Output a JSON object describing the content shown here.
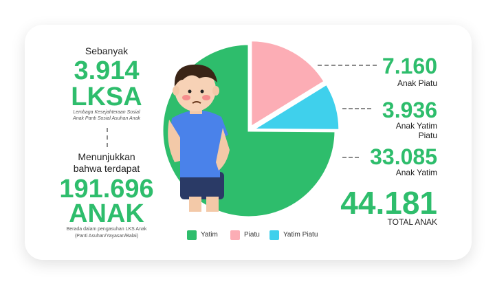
{
  "colors": {
    "green": "#2ebd6c",
    "pink": "#fcadb5",
    "blue": "#3fd0ec"
  },
  "left": {
    "intro": "Sebanyak",
    "lksa_number": "3.914",
    "lksa_label": "LKSA",
    "lksa_desc_line1": "Lembaga Kesejahteraan Sosial",
    "lksa_desc_line2": "Anak Panti Sosial Asuhan Anak",
    "show_line1": "Menunjukkan",
    "show_line2": "bahwa terdapat",
    "anak_number": "191.696",
    "anak_label": "ANAK",
    "anak_desc_line1": "Berada dalam pengasuhan LKS Anak",
    "anak_desc_line2": "(Panti Asuhan/Yayasan/Balai)"
  },
  "right": {
    "piatu_value": "7.160",
    "piatu_label": "Anak Piatu",
    "yatim_piatu_value": "3.936",
    "yatim_piatu_label_line1": "Anak Yatim",
    "yatim_piatu_label_line2": "Piatu",
    "yatim_value": "33.085",
    "yatim_label": "Anak Yatim",
    "total_value": "44.181",
    "total_label": "TOTAL ANAK"
  },
  "chart_data": {
    "type": "pie",
    "slices": [
      {
        "name": "Yatim",
        "value": 33085,
        "color": "#2ebd6c"
      },
      {
        "name": "Piatu",
        "value": 7160,
        "color": "#fcadb5"
      },
      {
        "name": "Yatim Piatu",
        "value": 3936,
        "color": "#3fd0ec"
      }
    ],
    "legend": [
      "Yatim",
      "Piatu",
      "Yatim Piatu"
    ],
    "legend_placement": "bottom"
  }
}
